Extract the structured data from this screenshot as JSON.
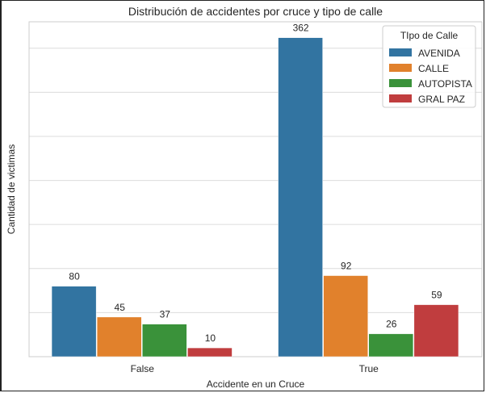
{
  "chart_data": {
    "type": "bar",
    "title": "Distribución de accidentes por cruce y tipo de calle",
    "xlabel": "Accidente en un Cruce",
    "ylabel": "Cantidad de victimas",
    "categories": [
      "False",
      "True"
    ],
    "series": [
      {
        "name": "AVENIDA",
        "values": [
          80,
          362
        ],
        "color": "#3274a1"
      },
      {
        "name": "CALLE",
        "values": [
          45,
          92
        ],
        "color": "#e1812c"
      },
      {
        "name": "AUTOPISTA",
        "values": [
          37,
          26
        ],
        "color": "#3a923a"
      },
      {
        "name": "GRAL PAZ",
        "values": [
          10,
          59
        ],
        "color": "#c03d3e"
      }
    ],
    "ylim": [
      0,
      380
    ],
    "grid": true,
    "legend": {
      "title": "TIpo de Calle",
      "placement": "top-right"
    },
    "bar_labels": true
  }
}
